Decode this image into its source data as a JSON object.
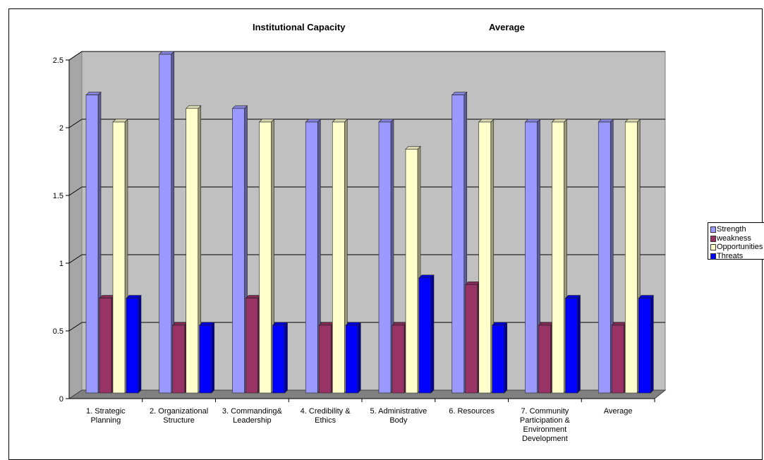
{
  "chart_data": {
    "type": "bar",
    "title": "Institutional Capacity",
    "subtitle": "Average",
    "categories": [
      "1.      Strategic Planning",
      "2.      Organizational Structure",
      "3.      Commanding& Leadership",
      "4.      Credibility & Ethics",
      "5.      Administrative Body",
      "6.      Resources",
      "7.      Community Participation & Environment Development",
      "Average"
    ],
    "series": [
      {
        "name": "Strength",
        "color": "#9999ff",
        "values": [
          2.2,
          2.5,
          2.1,
          2.0,
          2.0,
          2.2,
          2.0,
          2.0
        ]
      },
      {
        "name": "weakness",
        "color": "#993366",
        "values": [
          0.7,
          0.5,
          0.7,
          0.5,
          0.5,
          0.8,
          0.5,
          0.5
        ]
      },
      {
        "name": "Opportunities",
        "color": "#ffffcc",
        "values": [
          2.0,
          2.1,
          2.0,
          2.0,
          1.8,
          2.0,
          2.0,
          2.0
        ]
      },
      {
        "name": "Threats",
        "color": "#0000ff",
        "values": [
          0.7,
          0.5,
          0.5,
          0.5,
          0.85,
          0.5,
          0.7,
          0.7
        ]
      }
    ],
    "yticks": [
      "0",
      "0.5",
      "1",
      "1.5",
      "2",
      "2.5"
    ],
    "ylim": [
      0,
      2.5
    ],
    "grid": true,
    "legend_position": "right",
    "plot_background": "#c0c0c0"
  }
}
